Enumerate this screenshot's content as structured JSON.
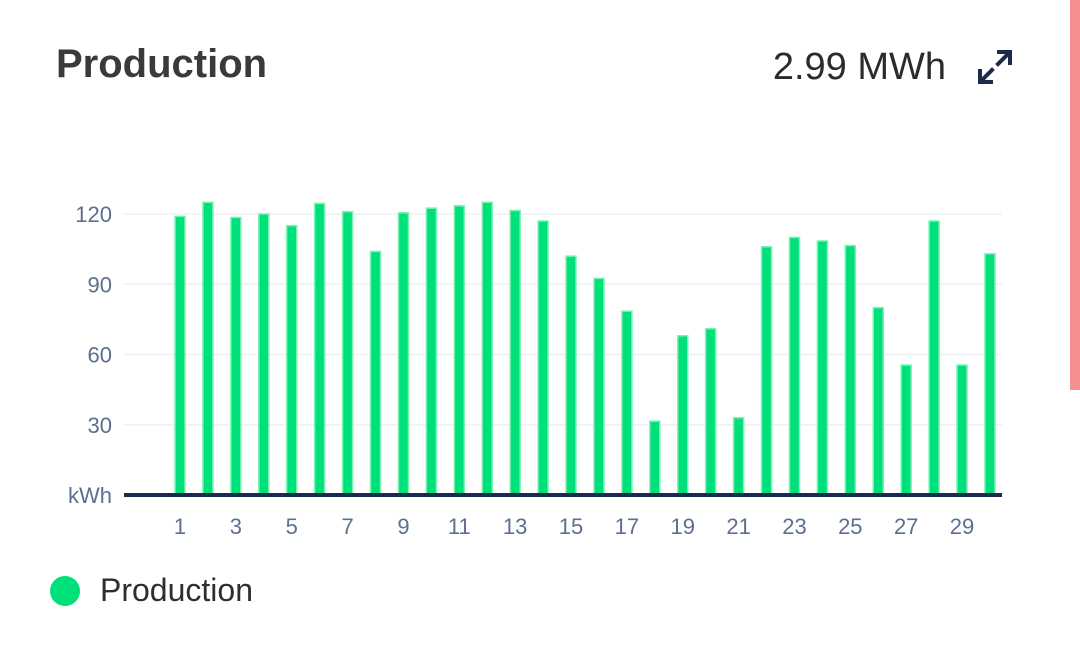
{
  "header": {
    "title": "Production",
    "total": "2.99 MWh"
  },
  "icons": {
    "expand": "expand-arrows-icon"
  },
  "colors": {
    "bar": "#00e07a",
    "bar_edge": "#7af2b4",
    "axis": "#1b2a4e",
    "tick_text": "#5d6f8f",
    "grid": "#eef0f3",
    "scroll_accent": "#f4918f"
  },
  "chart_data": {
    "type": "bar",
    "title": "",
    "xlabel": "",
    "ylabel": "kWh",
    "ylim": [
      0,
      120
    ],
    "yticks": [
      30,
      60,
      90,
      120
    ],
    "x_tick_labels": [
      "1",
      "3",
      "5",
      "7",
      "9",
      "11",
      "13",
      "15",
      "17",
      "19",
      "21",
      "23",
      "25",
      "27",
      "29"
    ],
    "categories": [
      "1",
      "2",
      "3",
      "4",
      "5",
      "6",
      "7",
      "8",
      "9",
      "10",
      "11",
      "12",
      "13",
      "14",
      "15",
      "16",
      "17",
      "18",
      "19",
      "20",
      "21",
      "22",
      "23",
      "24",
      "25",
      "26",
      "27",
      "28",
      "29",
      "30"
    ],
    "series": [
      {
        "name": "Production",
        "values": [
          119,
          125,
          118.5,
          120,
          115,
          124.5,
          121,
          104,
          120.5,
          122.5,
          123.5,
          125,
          121.5,
          117,
          102,
          92.5,
          78.5,
          31.5,
          68,
          71,
          33,
          106,
          110,
          108.5,
          106.5,
          80,
          55.5,
          117,
          55.5,
          103
        ]
      }
    ],
    "legend_position": "bottom-left",
    "grid": true
  },
  "legend": {
    "items": [
      {
        "label": "Production"
      }
    ]
  }
}
